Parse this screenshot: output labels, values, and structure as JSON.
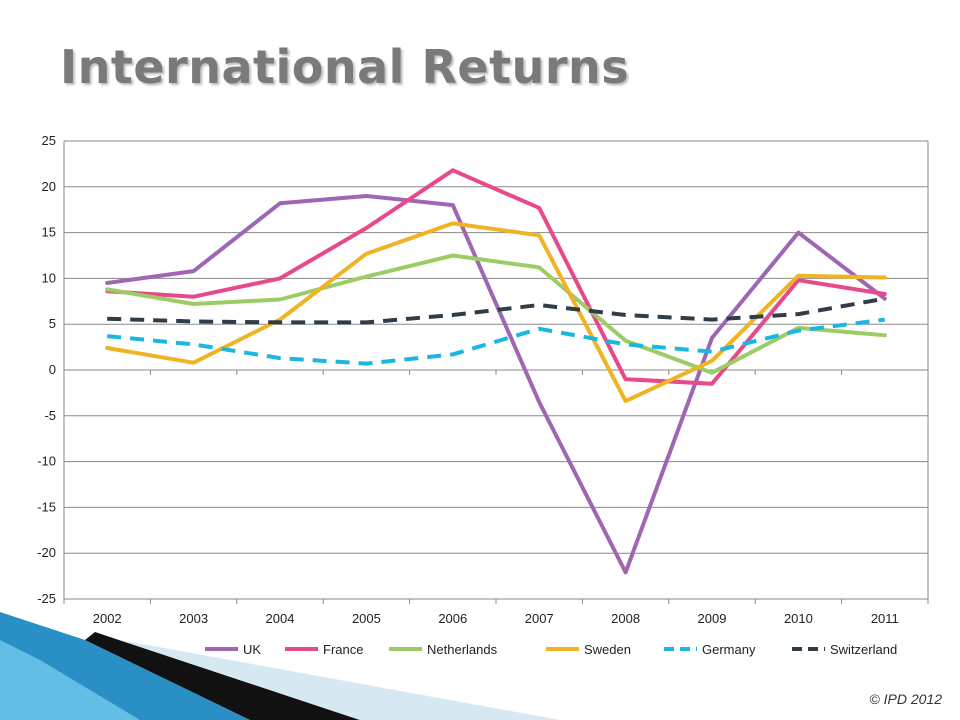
{
  "slide": {
    "title": "International Returns",
    "copyright": "© IPD 2012"
  },
  "chart_data": {
    "type": "line",
    "title": "",
    "xlabel": "",
    "ylabel": "",
    "ylim": [
      -25,
      25
    ],
    "yticks": [
      25,
      20,
      15,
      10,
      5,
      0,
      -5,
      -10,
      -15,
      -20,
      -25
    ],
    "grid": true,
    "legend_position": "bottom",
    "categories": [
      "2002",
      "2003",
      "2004",
      "2005",
      "2006",
      "2007",
      "2008",
      "2009",
      "2010",
      "2011"
    ],
    "series": [
      {
        "name": "UK",
        "color": "#9e66b3",
        "dashed": false,
        "values": [
          9.5,
          10.8,
          18.2,
          19.0,
          18.0,
          -3.5,
          -22.1,
          3.5,
          15.0,
          7.8
        ]
      },
      {
        "name": "France",
        "color": "#e8498a",
        "dashed": false,
        "values": [
          8.6,
          8.0,
          10.0,
          15.5,
          21.8,
          17.7,
          -1.0,
          -1.5,
          9.8,
          8.3
        ]
      },
      {
        "name": "Netherlands",
        "color": "#9ccc65",
        "dashed": false,
        "values": [
          8.8,
          7.2,
          7.7,
          10.2,
          12.5,
          11.2,
          3.2,
          -0.3,
          4.6,
          3.8
        ]
      },
      {
        "name": "Sweden",
        "color": "#f0b323",
        "dashed": false,
        "values": [
          2.4,
          0.8,
          5.5,
          12.7,
          16.0,
          14.7,
          -3.4,
          1.0,
          10.3,
          10.1
        ]
      },
      {
        "name": "Germany",
        "color": "#1ab7e0",
        "dashed": true,
        "values": [
          3.7,
          2.8,
          1.3,
          0.7,
          1.7,
          4.5,
          2.8,
          2.0,
          4.3,
          5.5
        ]
      },
      {
        "name": "Switzerland",
        "color": "#2f3d4a",
        "dashed": true,
        "values": [
          5.6,
          5.3,
          5.2,
          5.2,
          6.0,
          7.1,
          6.0,
          5.5,
          6.1,
          7.8
        ]
      }
    ]
  }
}
